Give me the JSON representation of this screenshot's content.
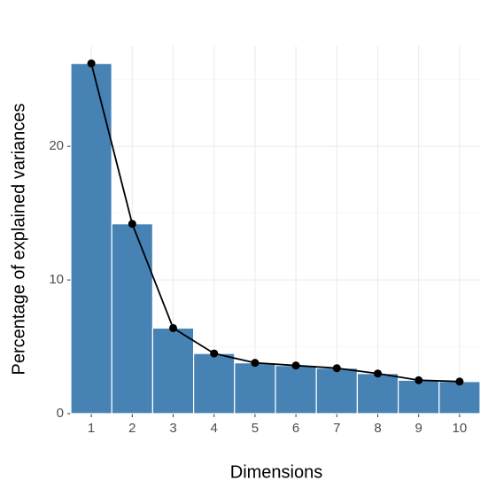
{
  "chart_data": {
    "type": "bar",
    "x_label": "Dimensions",
    "y_label": "Percentage of explained variances",
    "categories": [
      "1",
      "2",
      "3",
      "4",
      "5",
      "6",
      "7",
      "8",
      "9",
      "10"
    ],
    "values": [
      26.2,
      14.2,
      6.4,
      4.5,
      3.8,
      3.6,
      3.4,
      3.0,
      2.5,
      2.4
    ],
    "color": "#4682b4",
    "line_color": "#000000",
    "ylim": [
      0,
      27.5
    ],
    "yticks": [
      0,
      10,
      20
    ],
    "grid": true
  }
}
